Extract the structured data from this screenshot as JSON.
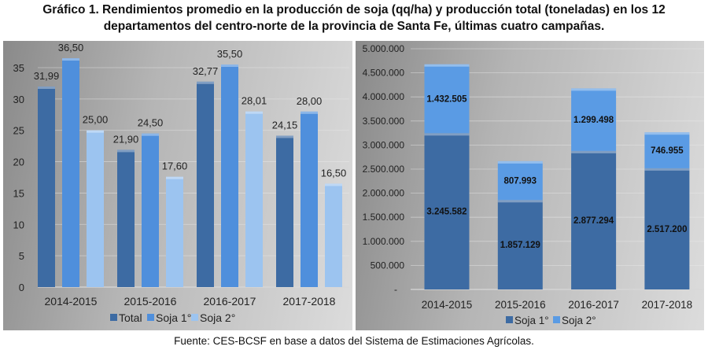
{
  "title_line1": "Gráfico 1. Rendimientos promedio en la producción de soja (qq/ha) y producción total (toneladas) en los 12",
  "title_line2": "departamentos del centro-norte de la provincia de Santa Fe, últimas cuatro campañas.",
  "source": "Fuente: CES-BCSF en base a datos del Sistema de Estimaciones Agrícolas.",
  "chart_data": [
    {
      "type": "bar",
      "categories": [
        "2014-2015",
        "2015-2016",
        "2016-2017",
        "2017-2018"
      ],
      "series": [
        {
          "name": "Total",
          "values": [
            31.99,
            21.9,
            32.77,
            24.15
          ],
          "labels": [
            "31,99",
            "21,90",
            "32,77",
            "24,15"
          ],
          "color": "#3d6ba3"
        },
        {
          "name": "Soja 1°",
          "values": [
            36.5,
            24.5,
            35.5,
            28.0
          ],
          "labels": [
            "36,50",
            "24,50",
            "35,50",
            "28,00"
          ],
          "color": "#4f8fdc"
        },
        {
          "name": "Soja 2°",
          "values": [
            25.0,
            17.6,
            28.01,
            16.5
          ],
          "labels": [
            "25,00",
            "17,60",
            "28,01",
            "16,50"
          ],
          "color": "#9cc4f0"
        }
      ],
      "ylim": [
        0,
        35
      ],
      "yticks": [
        "0",
        "5",
        "10",
        "15",
        "20",
        "25",
        "30",
        "35"
      ],
      "grid": true,
      "legend": "bottom"
    },
    {
      "type": "stacked-bar",
      "categories": [
        "2014-2015",
        "2015-2016",
        "2016-2017",
        "2017-2018"
      ],
      "series": [
        {
          "name": "Soja 1°",
          "values": [
            3245582,
            1857129,
            2877294,
            2517200
          ],
          "labels": [
            "3.245.582",
            "1.857.129",
            "2.877.294",
            "2.517.200"
          ],
          "color": "#3d6ba3"
        },
        {
          "name": "Soja 2°",
          "values": [
            1432505,
            807993,
            1299498,
            746955
          ],
          "labels": [
            "1.432.505",
            "807.993",
            "1.299.498",
            "746.955"
          ],
          "color": "#5a9be4"
        }
      ],
      "ylim": [
        0,
        5000000
      ],
      "yticks": [
        "-",
        "500.000",
        "1.000.000",
        "1.500.000",
        "2.000.000",
        "2.500.000",
        "3.000.000",
        "3.500.000",
        "4.000.000",
        "4.500.000",
        "5.000.000"
      ],
      "grid": true,
      "legend": "bottom"
    }
  ]
}
